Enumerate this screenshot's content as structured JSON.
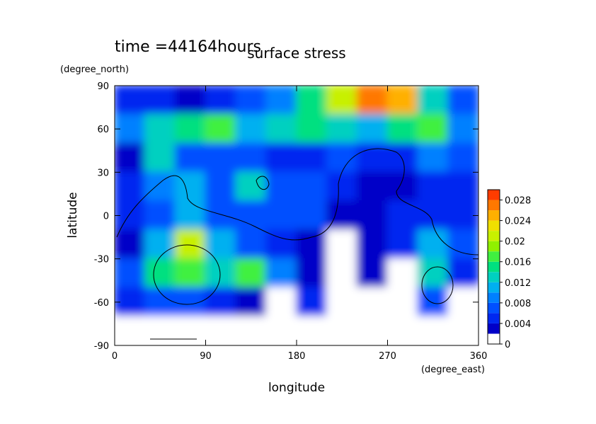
{
  "chart_data": {
    "type": "heatmap",
    "title": "surface stress",
    "subtitle": "time =44164hours",
    "xlabel": "longitude",
    "xunit": "(degree_east)",
    "ylabel": "latitude",
    "yunit": "(degree_north)",
    "xlim": [
      0,
      360
    ],
    "ylim": [
      -90,
      90
    ],
    "xticks": [
      0,
      90,
      180,
      270,
      360
    ],
    "yticks": [
      -90,
      -60,
      -30,
      0,
      30,
      60,
      90
    ],
    "x": [
      15,
      45,
      75,
      105,
      135,
      165,
      195,
      225,
      255,
      285,
      315,
      345
    ],
    "y": [
      80,
      60,
      40,
      20,
      0,
      -20,
      -40,
      -60,
      -80
    ],
    "z": [
      [
        0.004,
        0.004,
        0.003,
        0.004,
        0.006,
        0.008,
        0.014,
        0.02,
        0.026,
        0.024,
        0.012,
        0.006
      ],
      [
        0.008,
        0.012,
        0.014,
        0.016,
        0.01,
        0.012,
        0.014,
        0.012,
        0.01,
        0.014,
        0.016,
        0.008
      ],
      [
        0.002,
        0.012,
        0.006,
        0.006,
        0.006,
        0.004,
        0.004,
        0.006,
        0.004,
        0.004,
        0.008,
        0.006
      ],
      [
        0.004,
        0.008,
        0.01,
        0.006,
        0.012,
        0.006,
        0.006,
        0.004,
        0.002,
        0.002,
        0.004,
        0.004
      ],
      [
        0.004,
        0.006,
        0.01,
        0.006,
        0.006,
        0.006,
        0.006,
        0.002,
        0.002,
        0.004,
        0.004,
        0.004
      ],
      [
        0.002,
        0.01,
        0.02,
        0.01,
        0.006,
        0.004,
        0.002,
        0.001,
        0.002,
        0.004,
        0.01,
        0.006
      ],
      [
        0.006,
        0.014,
        0.016,
        0.012,
        0.016,
        0.008,
        0.002,
        0.001,
        0.002,
        0.001,
        0.012,
        0.004
      ],
      [
        0.004,
        0.006,
        0.006,
        0.004,
        0.002,
        0.001,
        0.004,
        0.001,
        0.001,
        0.001,
        0.006,
        0.001
      ],
      [
        0,
        0,
        0,
        0,
        0,
        0,
        0,
        0,
        0,
        0,
        0,
        0
      ]
    ],
    "levels": [
      0,
      0.002,
      0.004,
      0.006,
      0.008,
      0.01,
      0.012,
      0.014,
      0.016,
      0.018,
      0.02,
      0.022,
      0.024,
      0.026,
      0.028,
      0.03
    ],
    "colors": [
      "#ffffff",
      "#0000c8",
      "#0028f0",
      "#0050ff",
      "#0080ff",
      "#00b0f0",
      "#00d0c0",
      "#00e080",
      "#40f040",
      "#90f000",
      "#c8f000",
      "#f0e000",
      "#ffb000",
      "#ff7800",
      "#ff3c00"
    ],
    "cticks": [
      0,
      0.004,
      0.008,
      0.012,
      0.016,
      0.02,
      0.024,
      0.028
    ]
  }
}
